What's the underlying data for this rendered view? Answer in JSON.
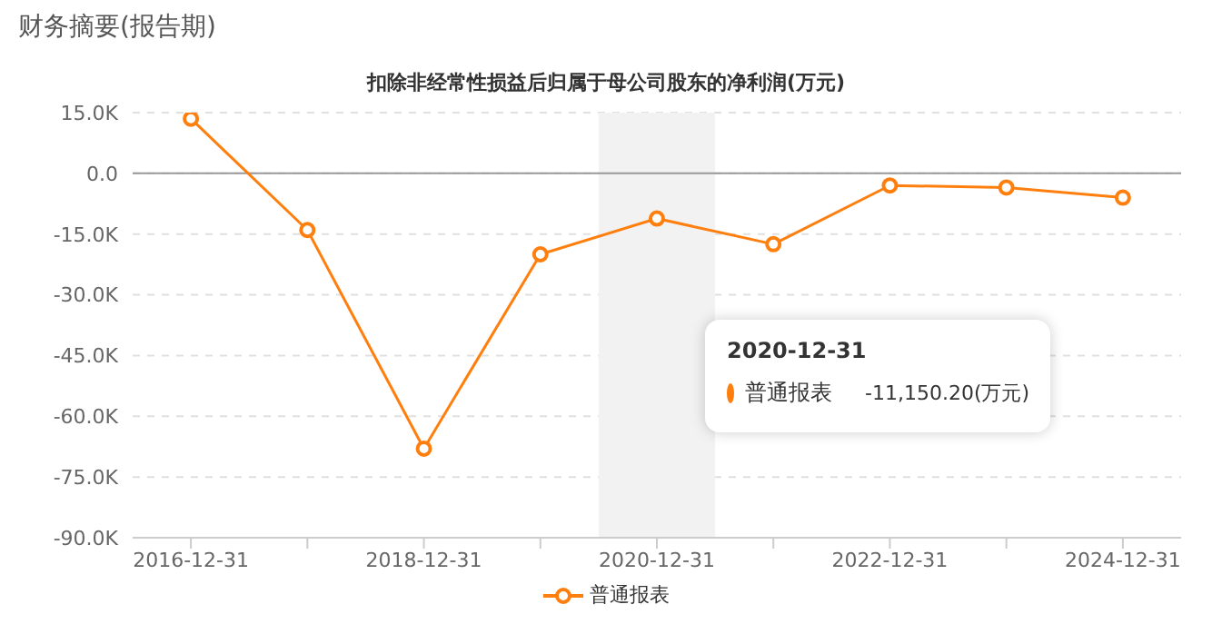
{
  "chart_data": {
    "type": "line",
    "title": "财务摘要(报告期)",
    "subtitle": "扣除非经常性损益后归属于母公司股东的净利润(万元)",
    "categories": [
      "2016-12-31",
      null,
      "2018-12-31",
      null,
      "2020-12-31",
      null,
      "2022-12-31",
      null,
      "2024-12-31"
    ],
    "series": [
      {
        "name": "普通报表",
        "color": "#ff7f0e",
        "values": [
          13500,
          -14000,
          -68000,
          -20000,
          -11150.2,
          -17500,
          -3000,
          -3500,
          -6000
        ]
      }
    ],
    "ylim": [
      -90000,
      15000
    ],
    "yticks": [
      {
        "value": 15000,
        "label": "15.0K"
      },
      {
        "value": 0,
        "label": "0.0"
      },
      {
        "value": -15000,
        "label": "-15.0K"
      },
      {
        "value": -30000,
        "label": "-30.0K"
      },
      {
        "value": -45000,
        "label": "-45.0K"
      },
      {
        "value": -60000,
        "label": "-60.0K"
      },
      {
        "value": -75000,
        "label": "-75.0K"
      },
      {
        "value": -90000,
        "label": "-90.0K"
      }
    ],
    "ref_lines": [
      {
        "axis": "y",
        "value": 0,
        "color": "#999999",
        "line_style": "solid"
      }
    ],
    "bands": [
      {
        "axis": "x",
        "from": "2020-12-31",
        "to": "2020-12-31",
        "color": "#f2f2f2"
      }
    ],
    "annotations": [
      "2020-12-31",
      "普通报表",
      "-11,150.20(万元)"
    ],
    "grid": "y",
    "legend": "bottom",
    "marker": "circle",
    "line_style": "solid"
  }
}
